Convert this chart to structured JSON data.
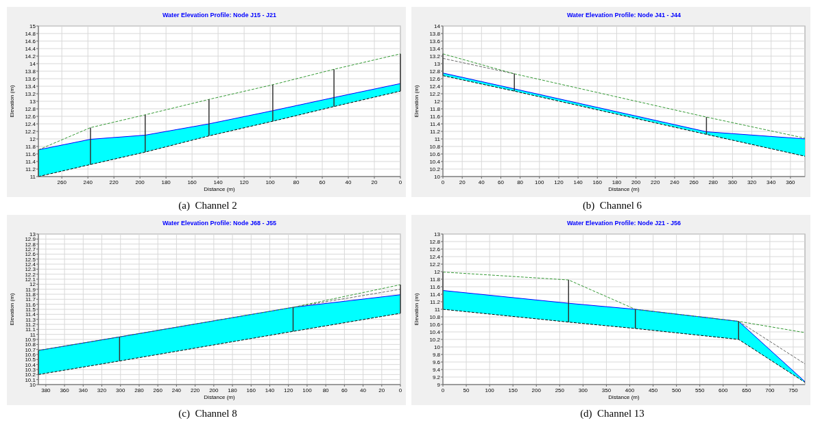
{
  "chart_data": [
    {
      "type": "line",
      "title": "Water Elevation Profile: Node J15 - J21",
      "xlabel": "Distance (m)",
      "ylabel": "Elevation (m)",
      "annotations": [
        "(a)  Channel 2"
      ],
      "grid": true,
      "x": [
        278,
        238,
        196,
        147,
        98,
        51,
        0
      ],
      "xlim": [
        278,
        0
      ],
      "xticks": [
        260,
        240,
        220,
        200,
        180,
        160,
        140,
        120,
        100,
        80,
        60,
        40,
        20,
        0
      ],
      "ylim": [
        11,
        15
      ],
      "yticks": [
        11,
        11.2,
        11.4,
        11.6,
        11.8,
        12,
        12.2,
        12.4,
        12.6,
        12.8,
        13,
        13.2,
        13.4,
        13.6,
        13.8,
        14,
        14.2,
        14.4,
        14.6,
        14.8,
        15
      ],
      "series": [
        {
          "type": "line",
          "color": "#0000ff",
          "values": [
            11.71,
            11.99,
            12.1,
            12.4,
            12.75,
            13.1,
            13.47
          ],
          "lower": [
            11.0,
            11.32,
            11.65,
            12.08,
            12.47,
            12.86,
            13.27
          ],
          "upper": [
            11.71,
            11.99,
            12.1,
            12.4,
            12.75,
            13.1,
            13.47
          ]
        },
        {
          "type": "line",
          "color": "#000000",
          "line_style": "dashed",
          "values": [
            11.0,
            11.32,
            11.65,
            12.08,
            12.47,
            12.86,
            13.27
          ]
        },
        {
          "type": "line",
          "color": "#339933",
          "line_style": "dashed",
          "values": [
            11.71,
            12.3,
            12.64,
            13.05,
            13.44,
            13.85,
            14.26
          ]
        }
      ],
      "ref_lines": [
        {
          "axis": "x",
          "value": 278,
          "color": "#333333"
        },
        {
          "axis": "x",
          "value": 238,
          "color": "#333333"
        },
        {
          "axis": "x",
          "value": 196,
          "color": "#333333"
        },
        {
          "axis": "x",
          "value": 147,
          "color": "#333333"
        },
        {
          "axis": "x",
          "value": 98,
          "color": "#333333"
        },
        {
          "axis": "x",
          "value": 51,
          "color": "#333333"
        },
        {
          "axis": "x",
          "value": 0,
          "color": "#333333"
        }
      ]
    },
    {
      "type": "line",
      "title": "Water Elevation Profile: Node J41 - J44",
      "xlabel": "Distance (m)",
      "ylabel": "Elevation (m)",
      "annotations": [
        "(b)  Channel 6"
      ],
      "grid": true,
      "x": [
        0,
        74,
        273,
        375
      ],
      "xlim": [
        0,
        375
      ],
      "xticks": [
        0,
        20,
        40,
        60,
        80,
        100,
        120,
        140,
        160,
        180,
        200,
        220,
        240,
        260,
        280,
        300,
        320,
        340,
        360
      ],
      "ylim": [
        10,
        14
      ],
      "yticks": [
        10,
        10.2,
        10.4,
        10.6,
        10.8,
        11,
        11.2,
        11.4,
        11.6,
        11.8,
        12,
        12.2,
        12.4,
        12.6,
        12.8,
        13,
        13.2,
        13.4,
        13.6,
        13.8,
        14
      ],
      "series": [
        {
          "type": "line",
          "color": "#0000ff",
          "values": [
            12.75,
            12.33,
            11.19,
            11.0
          ],
          "lower": [
            12.68,
            12.27,
            11.12,
            10.54
          ],
          "upper": [
            12.75,
            12.33,
            11.19,
            11.0
          ]
        },
        {
          "type": "line",
          "color": "#000000",
          "line_style": "dashed",
          "values": [
            12.68,
            12.27,
            11.12,
            10.54
          ]
        },
        {
          "type": "line",
          "color": "#666666",
          "line_style": "dashed",
          "values": [
            13.14,
            12.73,
            null,
            null
          ]
        },
        {
          "type": "line",
          "color": "#339933",
          "line_style": "dashed",
          "values": [
            13.26,
            12.73,
            11.58,
            11.02
          ]
        }
      ],
      "ref_lines": [
        {
          "axis": "x",
          "value": 0,
          "color": "#333333"
        },
        {
          "axis": "x",
          "value": 74,
          "color": "#333333"
        },
        {
          "axis": "x",
          "value": 273,
          "color": "#333333"
        }
      ]
    },
    {
      "type": "line",
      "title": "Water Elevation Profile: Node J68 - J55",
      "xlabel": "Distance (m)",
      "ylabel": "Elevation (m)",
      "annotations": [
        "(c)  Channel 8"
      ],
      "grid": true,
      "x": [
        388,
        301,
        115,
        0
      ],
      "xlim": [
        388,
        0
      ],
      "xticks": [
        380,
        360,
        340,
        320,
        300,
        280,
        260,
        240,
        220,
        200,
        180,
        160,
        140,
        120,
        100,
        80,
        60,
        40,
        20,
        0
      ],
      "ylim": [
        10,
        13
      ],
      "yticks": [
        10,
        10.1,
        10.2,
        10.3,
        10.4,
        10.5,
        10.6,
        10.7,
        10.8,
        10.9,
        11,
        11.1,
        11.2,
        11.3,
        11.4,
        11.5,
        11.6,
        11.7,
        11.8,
        11.9,
        12,
        12.1,
        12.2,
        12.3,
        12.4,
        12.5,
        12.6,
        12.7,
        12.8,
        12.9,
        13
      ],
      "series": [
        {
          "type": "line",
          "color": "#0000ff",
          "values": [
            10.68,
            10.95,
            11.54,
            11.79
          ],
          "lower": [
            10.2,
            10.47,
            11.06,
            11.42
          ],
          "upper": [
            10.68,
            10.95,
            11.54,
            11.79
          ]
        },
        {
          "type": "line",
          "color": "#000000",
          "line_style": "dashed",
          "values": [
            10.2,
            10.47,
            11.06,
            11.42
          ]
        },
        {
          "type": "line",
          "color": "#666666",
          "line_style": "dashed",
          "values": [
            null,
            null,
            11.54,
            11.9
          ]
        },
        {
          "type": "line",
          "color": "#339933",
          "line_style": "dashed",
          "values": [
            10.68,
            10.95,
            11.54,
            11.99
          ]
        }
      ],
      "ref_lines": [
        {
          "axis": "x",
          "value": 388,
          "color": "#333333"
        },
        {
          "axis": "x",
          "value": 301,
          "color": "#333333"
        },
        {
          "axis": "x",
          "value": 115,
          "color": "#333333"
        },
        {
          "axis": "x",
          "value": 0,
          "color": "#333333"
        }
      ]
    },
    {
      "type": "line",
      "title": "Water Elevation Profile: Node J21 - J56",
      "xlabel": "Distance (m)",
      "ylabel": "Elevation (m)",
      "annotations": [
        "(d)  Channel 13"
      ],
      "grid": true,
      "x": [
        0,
        269,
        412,
        633,
        775
      ],
      "xlim": [
        0,
        775
      ],
      "xticks": [
        0,
        50,
        100,
        150,
        200,
        250,
        300,
        350,
        400,
        450,
        500,
        550,
        600,
        650,
        700,
        750
      ],
      "ylim": [
        9,
        13
      ],
      "yticks": [
        9,
        9.2,
        9.4,
        9.6,
        9.8,
        10,
        10.2,
        10.4,
        10.6,
        10.8,
        11,
        11.2,
        11.4,
        11.6,
        11.8,
        12,
        12.2,
        12.4,
        12.6,
        12.8,
        13
      ],
      "series": [
        {
          "type": "line",
          "color": "#0000ff",
          "values": [
            11.5,
            11.16,
            11.0,
            10.68,
            9.08
          ],
          "lower": [
            11.0,
            10.66,
            10.49,
            10.2,
            9.06
          ],
          "upper": [
            11.5,
            11.16,
            11.0,
            10.68,
            9.08
          ]
        },
        {
          "type": "line",
          "color": "#000000",
          "line_style": "dashed",
          "values": [
            11.0,
            10.66,
            10.49,
            10.2,
            9.06
          ]
        },
        {
          "type": "line",
          "color": "#666666",
          "line_style": "dashed",
          "values": [
            null,
            null,
            null,
            10.68,
            9.55
          ]
        },
        {
          "type": "line",
          "color": "#339933",
          "line_style": "dashed",
          "values": [
            11.99,
            11.78,
            11.0,
            10.68,
            10.38
          ]
        }
      ],
      "ref_lines": [
        {
          "axis": "x",
          "value": 0,
          "color": "#333333"
        },
        {
          "axis": "x",
          "value": 269,
          "color": "#333333"
        },
        {
          "axis": "x",
          "value": 412,
          "color": "#333333"
        },
        {
          "axis": "x",
          "value": 633,
          "color": "#333333"
        }
      ]
    }
  ]
}
